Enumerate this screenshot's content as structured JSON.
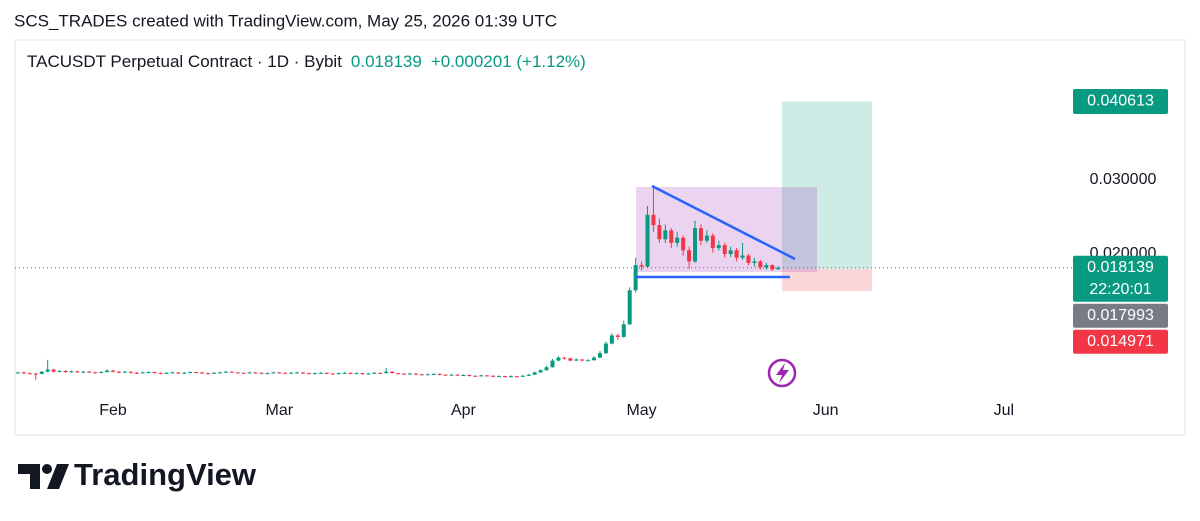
{
  "header": "SCS_TRADES created with TradingView.com, May 25, 2026 01:39 UTC",
  "footer_brand": "TradingView",
  "chart_data": {
    "type": "candlestick",
    "title": "TACUSDT Perpetual Contract · 1D · Bybit",
    "last_price": 0.018139,
    "change": "+0.000201 (+1.12%)",
    "countdown": "22:20:01",
    "target": 0.040613,
    "entry": 0.017993,
    "stop": 0.014971,
    "up_color": "#089981",
    "down_color": "#f23645",
    "stop_color": "#f23645",
    "entry_color": "#787b86",
    "grid": false,
    "xlim": [
      -0.5,
      196.5
    ],
    "xticks": [
      {
        "value": 16,
        "label": "Feb"
      },
      {
        "value": 44,
        "label": "Mar"
      },
      {
        "value": 75,
        "label": "Apr"
      },
      {
        "value": 105,
        "label": "May"
      },
      {
        "value": 136,
        "label": "Jun"
      },
      {
        "value": 166,
        "label": "Jul"
      }
    ],
    "ylim": [
      0.00095,
      0.04892
    ],
    "yticks": [
      {
        "value": 0.02,
        "label": "0.020000"
      },
      {
        "value": 0.03,
        "label": "0.030000"
      }
    ],
    "candles": [
      [
        0.00395,
        0.0041,
        0.00385,
        0.004
      ],
      [
        0.004,
        0.0041,
        0.0038,
        0.0039
      ],
      [
        0.0039,
        0.004,
        0.00375,
        0.00385
      ],
      [
        0.00385,
        0.00395,
        0.003,
        0.0038
      ],
      [
        0.0038,
        0.0042,
        0.00375,
        0.0041
      ],
      [
        0.0041,
        0.0057,
        0.004,
        0.0044
      ],
      [
        0.0044,
        0.0045,
        0.004,
        0.0041
      ],
      [
        0.0041,
        0.0043,
        0.004,
        0.0042
      ],
      [
        0.0042,
        0.0043,
        0.00395,
        0.00405
      ],
      [
        0.00405,
        0.00425,
        0.00395,
        0.00415
      ],
      [
        0.00415,
        0.00425,
        0.00395,
        0.004
      ],
      [
        0.004,
        0.0042,
        0.0039,
        0.0041
      ],
      [
        0.0041,
        0.0042,
        0.00395,
        0.004
      ],
      [
        0.004,
        0.0041,
        0.00385,
        0.00395
      ],
      [
        0.00395,
        0.00415,
        0.0039,
        0.00405
      ],
      [
        0.00405,
        0.0044,
        0.004,
        0.00425
      ],
      [
        0.00425,
        0.00435,
        0.004,
        0.0041
      ],
      [
        0.0041,
        0.0042,
        0.0039,
        0.004
      ],
      [
        0.004,
        0.0042,
        0.00395,
        0.0041
      ],
      [
        0.0041,
        0.00415,
        0.00385,
        0.00395
      ],
      [
        0.00395,
        0.00405,
        0.0038,
        0.0039
      ],
      [
        0.0039,
        0.0041,
        0.00385,
        0.004
      ],
      [
        0.004,
        0.00415,
        0.00395,
        0.00405
      ],
      [
        0.00405,
        0.0041,
        0.00385,
        0.00395
      ],
      [
        0.00395,
        0.004,
        0.00375,
        0.00385
      ],
      [
        0.00385,
        0.00405,
        0.0038,
        0.00395
      ],
      [
        0.00395,
        0.0041,
        0.0039,
        0.004
      ],
      [
        0.004,
        0.00405,
        0.0038,
        0.0039
      ],
      [
        0.0039,
        0.00405,
        0.00385,
        0.00395
      ],
      [
        0.00395,
        0.00415,
        0.0039,
        0.00405
      ],
      [
        0.00405,
        0.0041,
        0.0039,
        0.004
      ],
      [
        0.004,
        0.00405,
        0.0038,
        0.0039
      ],
      [
        0.0039,
        0.00395,
        0.00375,
        0.00385
      ],
      [
        0.00385,
        0.00405,
        0.0038,
        0.00395
      ],
      [
        0.00395,
        0.0041,
        0.0039,
        0.004
      ],
      [
        0.004,
        0.0042,
        0.00395,
        0.0041
      ],
      [
        0.0041,
        0.00415,
        0.00395,
        0.004
      ],
      [
        0.004,
        0.00405,
        0.00385,
        0.00395
      ],
      [
        0.00395,
        0.004,
        0.0038,
        0.0039
      ],
      [
        0.0039,
        0.0041,
        0.00385,
        0.004
      ],
      [
        0.004,
        0.00405,
        0.00385,
        0.00395
      ],
      [
        0.00395,
        0.004,
        0.00375,
        0.00385
      ],
      [
        0.00385,
        0.004,
        0.0038,
        0.0039
      ],
      [
        0.0039,
        0.0041,
        0.00385,
        0.004
      ],
      [
        0.004,
        0.00405,
        0.00385,
        0.00395
      ],
      [
        0.00395,
        0.004,
        0.0038,
        0.0039
      ],
      [
        0.0039,
        0.00405,
        0.00385,
        0.00395
      ],
      [
        0.00395,
        0.0041,
        0.0039,
        0.004
      ],
      [
        0.004,
        0.00405,
        0.0038,
        0.0039
      ],
      [
        0.0039,
        0.00395,
        0.00375,
        0.00385
      ],
      [
        0.00385,
        0.004,
        0.0038,
        0.0039
      ],
      [
        0.0039,
        0.00405,
        0.00385,
        0.00395
      ],
      [
        0.00395,
        0.004,
        0.00375,
        0.00385
      ],
      [
        0.00385,
        0.0039,
        0.0037,
        0.0038
      ],
      [
        0.0038,
        0.004,
        0.00375,
        0.0039
      ],
      [
        0.0039,
        0.00405,
        0.00385,
        0.00395
      ],
      [
        0.00395,
        0.004,
        0.00375,
        0.00385
      ],
      [
        0.00385,
        0.004,
        0.0038,
        0.0039
      ],
      [
        0.0039,
        0.00395,
        0.0037,
        0.0038
      ],
      [
        0.0038,
        0.00395,
        0.00375,
        0.00385
      ],
      [
        0.00385,
        0.00405,
        0.0038,
        0.00395
      ],
      [
        0.00395,
        0.004,
        0.0038,
        0.0039
      ],
      [
        0.0039,
        0.0046,
        0.00385,
        0.0041
      ],
      [
        0.0041,
        0.00415,
        0.00385,
        0.0039
      ],
      [
        0.0039,
        0.00395,
        0.00375,
        0.00385
      ],
      [
        0.00385,
        0.0039,
        0.0037,
        0.0038
      ],
      [
        0.0038,
        0.00395,
        0.00375,
        0.00385
      ],
      [
        0.00385,
        0.0039,
        0.00365,
        0.00375
      ],
      [
        0.00375,
        0.0038,
        0.0036,
        0.0037
      ],
      [
        0.0037,
        0.00385,
        0.00365,
        0.00375
      ],
      [
        0.00375,
        0.0039,
        0.0037,
        0.0038
      ],
      [
        0.0038,
        0.00385,
        0.0036,
        0.0037
      ],
      [
        0.0037,
        0.00375,
        0.00355,
        0.00365
      ],
      [
        0.00365,
        0.0038,
        0.0036,
        0.0037
      ],
      [
        0.0037,
        0.00375,
        0.0035,
        0.0036
      ],
      [
        0.0036,
        0.00375,
        0.00355,
        0.00365
      ],
      [
        0.00365,
        0.0037,
        0.00345,
        0.00355
      ],
      [
        0.00355,
        0.0036,
        0.0034,
        0.0035
      ],
      [
        0.0035,
        0.0037,
        0.00345,
        0.0036
      ],
      [
        0.0036,
        0.00365,
        0.00345,
        0.00355
      ],
      [
        0.00355,
        0.0036,
        0.00335,
        0.00345
      ],
      [
        0.00345,
        0.0036,
        0.0034,
        0.0035
      ],
      [
        0.0035,
        0.00355,
        0.0033,
        0.0034
      ],
      [
        0.0034,
        0.0036,
        0.00335,
        0.0035
      ],
      [
        0.0035,
        0.00355,
        0.00335,
        0.00345
      ],
      [
        0.00345,
        0.00365,
        0.0034,
        0.00355
      ],
      [
        0.00355,
        0.0038,
        0.0035,
        0.0037
      ],
      [
        0.0037,
        0.0041,
        0.00365,
        0.004
      ],
      [
        0.004,
        0.0044,
        0.00395,
        0.0043
      ],
      [
        0.0043,
        0.0049,
        0.00425,
        0.0047
      ],
      [
        0.0047,
        0.0058,
        0.00465,
        0.0056
      ],
      [
        0.0056,
        0.0062,
        0.0055,
        0.006
      ],
      [
        0.006,
        0.0061,
        0.00575,
        0.0059
      ],
      [
        0.0059,
        0.006,
        0.0055,
        0.0056
      ],
      [
        0.0056,
        0.0059,
        0.00555,
        0.00575
      ],
      [
        0.00575,
        0.0058,
        0.0055,
        0.0056
      ],
      [
        0.0056,
        0.0058,
        0.00555,
        0.00565
      ],
      [
        0.00565,
        0.0062,
        0.0056,
        0.006
      ],
      [
        0.006,
        0.0069,
        0.00595,
        0.0066
      ],
      [
        0.0066,
        0.0082,
        0.0065,
        0.0079
      ],
      [
        0.0079,
        0.0093,
        0.0078,
        0.009
      ],
      [
        0.009,
        0.0092,
        0.0084,
        0.0088
      ],
      [
        0.0088,
        0.011,
        0.0087,
        0.0105
      ],
      [
        0.0105,
        0.0155,
        0.0104,
        0.0151
      ],
      [
        0.0151,
        0.0195,
        0.0148,
        0.0185
      ],
      [
        0.0185,
        0.019,
        0.0178,
        0.0183
      ],
      [
        0.0183,
        0.0265,
        0.0182,
        0.0253
      ],
      [
        0.0253,
        0.0293,
        0.023,
        0.0239
      ],
      [
        0.0239,
        0.0248,
        0.0215,
        0.022
      ],
      [
        0.022,
        0.024,
        0.0215,
        0.0232
      ],
      [
        0.0232,
        0.0235,
        0.0208,
        0.0215
      ],
      [
        0.0215,
        0.023,
        0.021,
        0.0222
      ],
      [
        0.0222,
        0.0225,
        0.0198,
        0.0205
      ],
      [
        0.0205,
        0.021,
        0.018,
        0.019
      ],
      [
        0.019,
        0.0245,
        0.0188,
        0.0235
      ],
      [
        0.0235,
        0.024,
        0.0212,
        0.0218
      ],
      [
        0.0218,
        0.0232,
        0.0215,
        0.0225
      ],
      [
        0.0225,
        0.0228,
        0.0202,
        0.0208
      ],
      [
        0.0208,
        0.0218,
        0.0205,
        0.0212
      ],
      [
        0.0212,
        0.0215,
        0.0195,
        0.02
      ],
      [
        0.02,
        0.021,
        0.0196,
        0.0205
      ],
      [
        0.0205,
        0.0208,
        0.019,
        0.0195
      ],
      [
        0.0195,
        0.0215,
        0.0192,
        0.0198
      ],
      [
        0.0198,
        0.02,
        0.0185,
        0.0188
      ],
      [
        0.0188,
        0.0195,
        0.0183,
        0.019
      ],
      [
        0.019,
        0.0192,
        0.0179,
        0.0182
      ],
      [
        0.0182,
        0.0188,
        0.0179,
        0.0185
      ],
      [
        0.0185,
        0.0186,
        0.0177,
        0.017938
      ],
      [
        0.017938,
        0.0184,
        0.0179,
        0.018139
      ]
    ]
  }
}
